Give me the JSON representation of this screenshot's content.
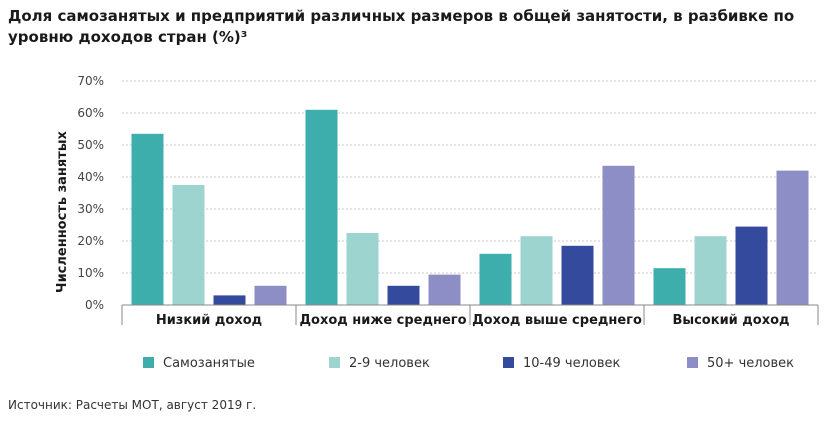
{
  "title": "Доля самозанятых и предприятий различных размеров в общей занятости, в разбивке по уровню доходов стран (%)³",
  "source": "Источник: Расчеты МОТ, август 2019 г.",
  "chart_data": {
    "type": "bar",
    "ylabel": "Численность занятых",
    "ylim": [
      0,
      70
    ],
    "yticks": [
      "0%",
      "10%",
      "20%",
      "30%",
      "40%",
      "50%",
      "60%",
      "70%"
    ],
    "grid": true,
    "legend": "bottom",
    "categories": [
      "Низкий доход",
      "Доход ниже среднего",
      "Доход выше среднего",
      "Высокий доход"
    ],
    "series": [
      {
        "name": "Самозанятые",
        "color": "#3daeab",
        "values": [
          53.5,
          61,
          16,
          11.5
        ]
      },
      {
        "name": "2-9 человек",
        "color": "#9dd4cf",
        "values": [
          37.5,
          22.5,
          21.5,
          21.5
        ]
      },
      {
        "name": "10-49 человек",
        "color": "#344a9c",
        "values": [
          3,
          6,
          18.5,
          24.5
        ]
      },
      {
        "name": "50+ человек",
        "color": "#8e8ec6",
        "values": [
          6,
          9.5,
          43.5,
          42
        ]
      }
    ]
  }
}
